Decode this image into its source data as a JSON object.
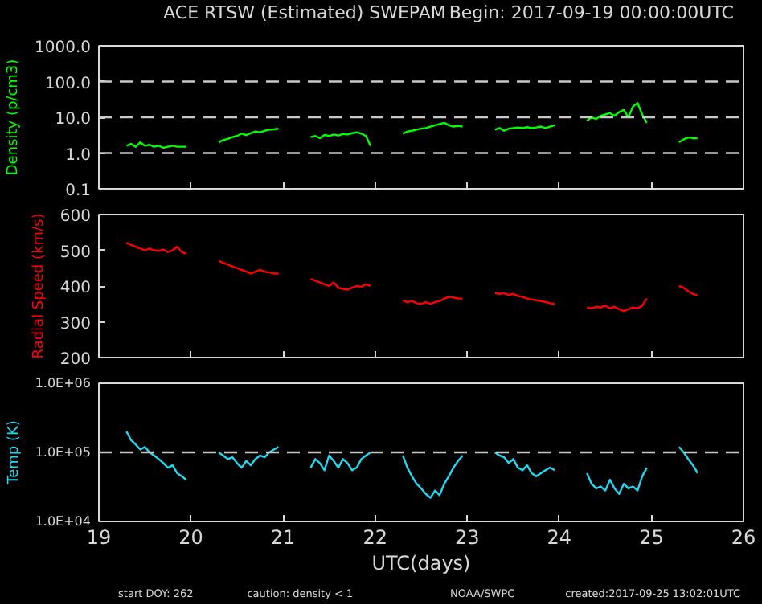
{
  "chart_data": [
    {
      "type": "line",
      "title": "ACE RTSW (Estimated) SWEPAM",
      "subtitle": "Begin: 2017-09-19 00:00:00UTC",
      "ylabel": "Density (p/cm3)",
      "log": "y",
      "tick_labels": "y",
      "xlim": [
        19,
        26
      ],
      "xticks": [
        19,
        20,
        21,
        22,
        23,
        24,
        25,
        26
      ],
      "ylim": [
        0.1,
        1000
      ],
      "yticks": [
        {
          "value": 0.1,
          "label": "0.1"
        },
        {
          "value": 1,
          "label": "1.0"
        },
        {
          "value": 10,
          "label": "10.0"
        },
        {
          "value": 100,
          "label": "100.0"
        },
        {
          "value": 1000,
          "label": "1000.0"
        }
      ],
      "ref_lines": [
        {
          "axis": "y",
          "value": 1,
          "label": null,
          "color": "#c8c8c8",
          "line_style": "dashed"
        },
        {
          "axis": "y",
          "value": 10,
          "label": null,
          "color": "#c8c8c8",
          "line_style": "dashed"
        },
        {
          "axis": "y",
          "value": 100,
          "label": null,
          "color": "#c8c8c8",
          "line_style": "dashed"
        }
      ],
      "x": [
        19.3,
        19.35,
        19.4,
        19.45,
        19.5,
        19.55,
        19.6,
        19.65,
        19.7,
        19.75,
        19.8,
        19.85,
        19.9,
        19.95,
        20.1,
        20.3,
        20.35,
        20.4,
        20.45,
        20.5,
        20.55,
        20.6,
        20.65,
        20.7,
        20.75,
        20.8,
        20.85,
        20.9,
        20.95,
        21.1,
        21.3,
        21.35,
        21.4,
        21.45,
        21.5,
        21.55,
        21.6,
        21.65,
        21.7,
        21.75,
        21.8,
        21.85,
        21.9,
        21.95,
        22.1,
        22.3,
        22.35,
        22.4,
        22.45,
        22.5,
        22.55,
        22.6,
        22.65,
        22.7,
        22.75,
        22.8,
        22.85,
        22.9,
        22.95,
        23.1,
        23.3,
        23.35,
        23.4,
        23.45,
        23.5,
        23.55,
        23.6,
        23.65,
        23.7,
        23.75,
        23.8,
        23.85,
        23.9,
        23.95,
        24.1,
        24.3,
        24.35,
        24.4,
        24.45,
        24.5,
        24.55,
        24.6,
        24.65,
        24.7,
        24.75,
        24.8,
        24.85,
        24.9,
        24.95,
        25.1,
        25.3,
        25.325,
        25.35,
        25.375,
        25.4,
        25.425,
        25.45,
        25.475,
        25.5
      ],
      "series": [
        {
          "color": "#00ff00",
          "values": [
            1.6,
            1.8,
            1.5,
            2.0,
            1.6,
            1.7,
            1.5,
            1.6,
            1.4,
            1.5,
            1.6,
            1.5,
            1.5,
            1.5,
            null,
            2.0,
            2.3,
            2.5,
            2.8,
            3.0,
            3.5,
            3.2,
            3.6,
            4.0,
            3.8,
            4.2,
            4.5,
            4.6,
            4.8,
            null,
            2.8,
            3.0,
            2.6,
            3.2,
            3.0,
            3.3,
            3.1,
            3.4,
            3.3,
            3.6,
            3.8,
            3.5,
            3.0,
            1.6,
            null,
            3.5,
            4.0,
            4.2,
            4.5,
            4.8,
            5.0,
            5.5,
            6.0,
            6.5,
            7.0,
            6.0,
            5.5,
            5.8,
            5.5,
            null,
            4.5,
            5.0,
            4.2,
            4.8,
            5.0,
            5.2,
            5.0,
            5.3,
            5.0,
            5.2,
            5.5,
            5.0,
            5.5,
            6.0,
            null,
            8,
            10,
            9,
            11,
            12,
            13,
            11,
            14,
            16,
            10,
            20,
            25,
            12,
            7,
            null,
            2.0,
            2.2,
            2.4,
            2.6,
            2.7,
            2.7,
            2.6,
            2.6,
            2.6
          ]
        }
      ]
    },
    {
      "type": "line",
      "ylabel": "Radial Speed (km/s)",
      "tick_labels": "y",
      "xlim": [
        19,
        26
      ],
      "xticks": [
        19,
        20,
        21,
        22,
        23,
        24,
        25,
        26
      ],
      "ylim": [
        200,
        600
      ],
      "yticks": [
        200,
        300,
        400,
        500,
        600
      ],
      "x": [
        19.3,
        19.35,
        19.4,
        19.45,
        19.5,
        19.55,
        19.6,
        19.65,
        19.7,
        19.75,
        19.8,
        19.85,
        19.9,
        19.95,
        20.1,
        20.3,
        20.35,
        20.4,
        20.45,
        20.5,
        20.55,
        20.6,
        20.65,
        20.7,
        20.75,
        20.8,
        20.85,
        20.9,
        20.95,
        21.1,
        21.3,
        21.35,
        21.4,
        21.45,
        21.5,
        21.55,
        21.6,
        21.65,
        21.7,
        21.75,
        21.8,
        21.85,
        21.9,
        21.95,
        22.1,
        22.3,
        22.35,
        22.4,
        22.45,
        22.5,
        22.55,
        22.6,
        22.65,
        22.7,
        22.75,
        22.8,
        22.85,
        22.9,
        22.95,
        23.1,
        23.3,
        23.35,
        23.4,
        23.45,
        23.5,
        23.55,
        23.6,
        23.65,
        23.7,
        23.75,
        23.8,
        23.85,
        23.9,
        23.95,
        24.1,
        24.3,
        24.35,
        24.4,
        24.45,
        24.5,
        24.55,
        24.6,
        24.65,
        24.7,
        24.75,
        24.8,
        24.85,
        24.9,
        24.95,
        25.1,
        25.3,
        25.325,
        25.35,
        25.375,
        25.4,
        25.425,
        25.45,
        25.475,
        25.5
      ],
      "series": [
        {
          "color": "#ff0000",
          "values": [
            520,
            515,
            510,
            505,
            500,
            505,
            500,
            498,
            502,
            495,
            500,
            510,
            495,
            490,
            null,
            470,
            465,
            460,
            455,
            450,
            445,
            440,
            435,
            440,
            445,
            440,
            438,
            435,
            435,
            null,
            420,
            415,
            410,
            405,
            400,
            410,
            395,
            392,
            390,
            395,
            400,
            398,
            405,
            400,
            null,
            360,
            355,
            358,
            352,
            350,
            355,
            350,
            355,
            358,
            365,
            370,
            368,
            365,
            365,
            null,
            380,
            378,
            380,
            375,
            378,
            372,
            370,
            365,
            362,
            360,
            358,
            355,
            352,
            350,
            null,
            340,
            338,
            342,
            340,
            345,
            338,
            342,
            335,
            330,
            335,
            340,
            338,
            345,
            365,
            null,
            400,
            398,
            395,
            390,
            385,
            382,
            378,
            376,
            375
          ]
        }
      ]
    },
    {
      "type": "line",
      "ylabel": "Temp (K)",
      "xlabel": "UTC(days)",
      "log": "y",
      "xlim": [
        19,
        26
      ],
      "xticks": [
        19,
        20,
        21,
        22,
        23,
        24,
        25,
        26
      ],
      "ylim": [
        10000,
        1000000
      ],
      "yticks": [
        {
          "value": 10000,
          "label": "1.0E+04"
        },
        {
          "value": 100000,
          "label": "1.0E+05"
        },
        {
          "value": 1000000,
          "label": "1.0E+06"
        }
      ],
      "ref_lines": [
        {
          "axis": "y",
          "value": 100000,
          "label": null,
          "color": "#c8c8c8",
          "line_style": "dashed"
        }
      ],
      "annotations": [
        "start DOY: 262",
        "caution: density < 1",
        "NOAA/SWPC",
        "created:2017-09-25 13:02:01UTC"
      ],
      "x": [
        19.3,
        19.35,
        19.4,
        19.45,
        19.5,
        19.55,
        19.6,
        19.65,
        19.7,
        19.75,
        19.8,
        19.85,
        19.9,
        19.95,
        20.1,
        20.3,
        20.35,
        20.4,
        20.45,
        20.5,
        20.55,
        20.6,
        20.65,
        20.7,
        20.75,
        20.8,
        20.85,
        20.9,
        20.95,
        21.1,
        21.3,
        21.35,
        21.4,
        21.45,
        21.5,
        21.55,
        21.6,
        21.65,
        21.7,
        21.75,
        21.8,
        21.85,
        21.9,
        21.95,
        22.1,
        22.3,
        22.35,
        22.4,
        22.45,
        22.5,
        22.55,
        22.6,
        22.65,
        22.7,
        22.75,
        22.8,
        22.85,
        22.9,
        22.95,
        23.1,
        23.3,
        23.35,
        23.4,
        23.45,
        23.5,
        23.55,
        23.6,
        23.65,
        23.7,
        23.75,
        23.8,
        23.85,
        23.9,
        23.95,
        24.1,
        24.3,
        24.35,
        24.4,
        24.45,
        24.5,
        24.55,
        24.6,
        24.65,
        24.7,
        24.75,
        24.8,
        24.85,
        24.9,
        24.95,
        25.1,
        25.3,
        25.325,
        25.35,
        25.375,
        25.4,
        25.425,
        25.45,
        25.475,
        25.5
      ],
      "series": [
        {
          "color": "#20d8f0",
          "values": [
            200000,
            150000,
            130000,
            110000,
            120000,
            100000,
            90000,
            80000,
            70000,
            60000,
            65000,
            50000,
            45000,
            40000,
            null,
            100000,
            90000,
            80000,
            85000,
            70000,
            60000,
            75000,
            65000,
            80000,
            90000,
            85000,
            100000,
            110000,
            120000,
            null,
            60000,
            80000,
            70000,
            55000,
            90000,
            75000,
            60000,
            80000,
            70000,
            55000,
            60000,
            80000,
            90000,
            100000,
            null,
            90000,
            60000,
            45000,
            35000,
            30000,
            25000,
            22000,
            28000,
            24000,
            35000,
            45000,
            60000,
            75000,
            90000,
            null,
            100000,
            90000,
            85000,
            70000,
            80000,
            60000,
            55000,
            65000,
            50000,
            45000,
            50000,
            55000,
            60000,
            55000,
            null,
            50000,
            35000,
            30000,
            32000,
            28000,
            40000,
            30000,
            25000,
            35000,
            30000,
            32000,
            28000,
            45000,
            60000,
            null,
            120000,
            110000,
            100000,
            90000,
            80000,
            72000,
            65000,
            58000,
            50000
          ]
        }
      ]
    }
  ]
}
